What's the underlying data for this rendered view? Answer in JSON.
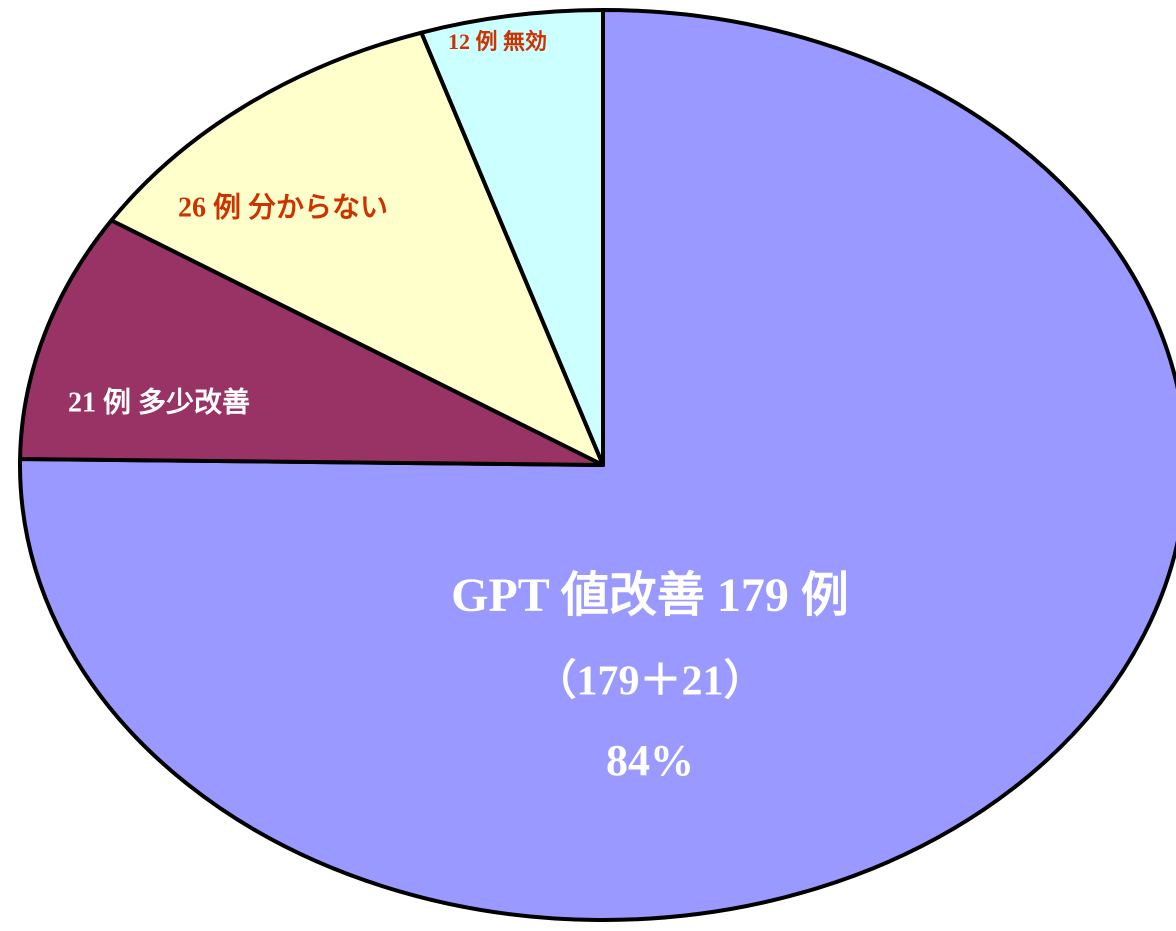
{
  "chart_data": {
    "type": "pie",
    "values": [
      179,
      21,
      26,
      12
    ],
    "value_labels": [
      "GPT 値改善 179 例",
      "21 例 多少改善",
      "26 例 分からない",
      "12 例  無効"
    ],
    "colors": [
      "#9999ff",
      "#993366",
      "#ffffcc",
      "#ccffff"
    ],
    "label_colors": [
      "#ffffff",
      "#ffffff",
      "#cc3300",
      "#cc3300"
    ],
    "annotations": [
      "（179＋21）",
      "84%"
    ],
    "start_angle": 0,
    "direction": "clockwise"
  }
}
